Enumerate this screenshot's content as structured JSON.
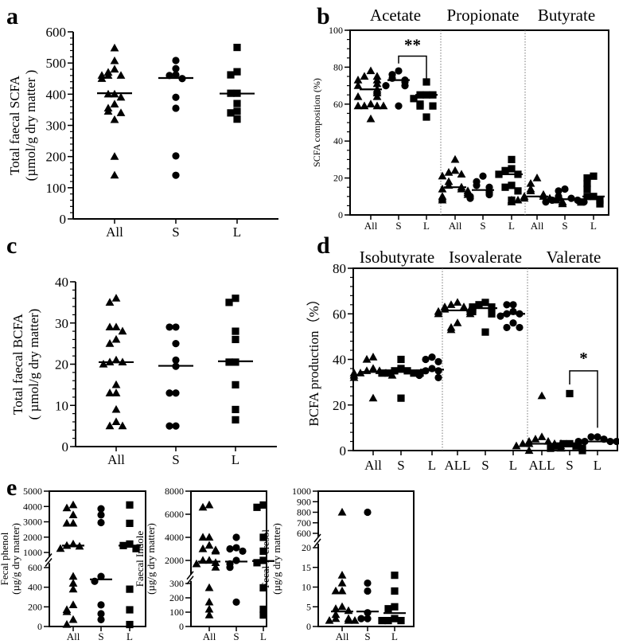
{
  "panel_labels": [
    "a",
    "b",
    "c",
    "d",
    "e"
  ],
  "chart_data": [
    {
      "id": "a",
      "type": "scatter",
      "ylabel": [
        "Total faecal SCFA",
        "(µmol/g dry matter )"
      ],
      "ylim": [
        0,
        600
      ],
      "yticks": [
        0,
        100,
        200,
        300,
        400,
        500,
        600
      ],
      "markers": [
        "triangle",
        "circle",
        "square"
      ],
      "groups": [
        {
          "title": "",
          "categories": [
            "All",
            "S",
            "L"
          ],
          "values": [
            [
              548,
              507,
              480,
              470,
              460,
              460,
              460,
              450,
              400,
              400,
              390,
              368,
              355,
              345,
              340,
              318,
              200,
              140
            ],
            [
              508,
              482,
              462,
              460,
              450,
              390,
              355,
              202,
              140
            ],
            [
              550,
              472,
              462,
              403,
              403,
              370,
              345,
              340,
              320
            ]
          ],
          "medians": [
            403,
            452,
            402
          ]
        }
      ]
    },
    {
      "id": "b",
      "type": "scatter",
      "ylabel": [
        "SCFA composition (%)"
      ],
      "ylim": [
        0,
        100
      ],
      "yticks": [
        0,
        20,
        40,
        60,
        80,
        100
      ],
      "markers": [
        "triangle",
        "circle",
        "square"
      ],
      "groups": [
        {
          "title": "Acetate",
          "categories": [
            "All",
            "S",
            "L"
          ],
          "values": [
            [
              78,
              75,
              75,
              73,
              73,
              71,
              70,
              68,
              67,
              66,
              64,
              64,
              60,
              59,
              59,
              59,
              59,
              52
            ],
            [
              78,
              76,
              74,
              73,
              72,
              70,
              70,
              59
            ],
            [
              72,
              65,
              65,
              65,
              63,
              60,
              59,
              59,
              53
            ]
          ],
          "medians": [
            68,
            73,
            65
          ]
        },
        {
          "title": "Propionate",
          "categories": [
            "All",
            "S",
            "L"
          ],
          "values": [
            [
              30,
              24,
              23,
              22,
              21,
              18,
              16,
              15,
              14,
              14,
              13,
              12,
              11,
              10,
              9,
              8
            ],
            [
              21,
              18,
              16,
              15,
              13,
              12,
              11,
              10,
              9
            ],
            [
              30,
              25,
              24,
              22,
              22,
              16,
              15,
              13,
              8
            ]
          ],
          "medians": [
            15,
            13.5,
            22
          ]
        },
        {
          "title": "Butyrate",
          "categories": [
            "All",
            "S",
            "L"
          ],
          "values": [
            [
              20,
              17,
              14,
              13,
              11,
              10,
              10,
              9,
              9,
              8,
              8,
              8,
              7,
              7,
              7,
              6,
              6
            ],
            [
              14,
              13,
              10,
              9,
              9,
              8,
              8,
              7,
              7
            ],
            [
              21,
              20,
              17,
              14,
              10,
              10,
              8,
              7,
              6
            ]
          ],
          "medians": [
            10,
            8.5,
            10
          ]
        }
      ],
      "annotations": [
        {
          "text": "**",
          "between": [
            "S",
            "L"
          ],
          "group": "Acetate"
        }
      ]
    },
    {
      "id": "c",
      "type": "scatter",
      "ylabel": [
        "Total faecal BCFA",
        "( µmol/g dry matter)"
      ],
      "ylim": [
        0,
        40
      ],
      "yticks": [
        0,
        10,
        20,
        30,
        40
      ],
      "markers": [
        "triangle",
        "circle",
        "square"
      ],
      "groups": [
        {
          "title": "",
          "categories": [
            "All",
            "S",
            "L"
          ],
          "values": [
            [
              36,
              35,
              29,
              29,
              28,
              26,
              25,
              21,
              20.5,
              20.5,
              20,
              15,
              13,
              13,
              9,
              6,
              5,
              5
            ],
            [
              29,
              29,
              25,
              21,
              19.5,
              13,
              13,
              5,
              5
            ],
            [
              36,
              35,
              28,
              26,
              20.5,
              20.5,
              15,
              9,
              6.5
            ]
          ],
          "medians": [
            20.5,
            19.6,
            20.7
          ]
        }
      ]
    },
    {
      "id": "d",
      "type": "scatter",
      "ylabel": [
        "BCFA production（%）"
      ],
      "ylim": [
        0,
        80
      ],
      "yticks": [
        0,
        20,
        40,
        60,
        80
      ],
      "markers": [
        "triangle",
        "square",
        "circle"
      ],
      "groups": [
        {
          "title": "Isobutyrate",
          "categories": [
            "All",
            "S",
            "L"
          ],
          "values": [
            [
              41,
              40,
              36,
              35,
              35,
              34,
              34,
              34,
              33,
              33,
              32,
              23
            ],
            [
              40,
              36,
              35,
              35,
              34,
              34,
              34,
              34,
              23
            ],
            [
              41,
              40,
              39,
              36,
              35,
              35,
              34,
              33,
              32
            ]
          ],
          "medians": [
            34.5,
            34.5,
            35.5
          ]
        },
        {
          "title": "Isovalerate",
          "categories": [
            "ALL",
            "S",
            "L"
          ],
          "values": [
            [
              65,
              64,
              63,
              63,
              62,
              62,
              61,
              61,
              60,
              60,
              56,
              54,
              53
            ],
            [
              65,
              64,
              63,
              63,
              62,
              61,
              60,
              52
            ],
            [
              64,
              64,
              61,
              60,
              60,
              59,
              56,
              54,
              54
            ]
          ],
          "medians": [
            61.5,
            62.5,
            60
          ]
        },
        {
          "title": "Valerate",
          "categories": [
            "ALL",
            "S",
            "L"
          ],
          "values": [
            [
              24,
              6,
              5,
              4,
              4,
              3,
              3,
              3,
              3,
              2,
              2,
              1,
              0
            ],
            [
              25,
              3,
              3,
              2,
              2,
              1,
              1,
              0
            ],
            [
              6,
              6,
              5,
              4,
              4,
              4,
              4,
              3,
              2
            ]
          ],
          "medians": [
            3,
            2,
            4
          ]
        }
      ],
      "annotations": [
        {
          "text": "*",
          "between": [
            "S",
            "L"
          ],
          "group": "Valerate"
        }
      ]
    },
    {
      "id": "e1",
      "type": "scatter",
      "ylabel": [
        "Fecal phenol",
        "(µg/g dry matter)"
      ],
      "ylim": [
        0,
        5000
      ],
      "axis_break": [
        600,
        1000
      ],
      "yticks": [
        0,
        200,
        400,
        600,
        1000,
        2000,
        3000,
        4000,
        5000
      ],
      "markers": [
        "triangle",
        "circle",
        "square"
      ],
      "groups": [
        {
          "title": "",
          "categories": [
            "All",
            "S",
            "L"
          ],
          "values": [
            [
              4100,
              3900,
              3450,
              2900,
              2900,
              1550,
              1450,
              1400,
              1250,
              510,
              440,
              380,
              220,
              170,
              150,
              70,
              20
            ],
            [
              3850,
              3450,
              2950,
              510,
              460,
              220,
              130,
              70
            ],
            [
              4100,
              2900,
              1550,
              1450,
              1250,
              380,
              170,
              20
            ]
          ],
          "medians": [
            1450,
            480,
            1450
          ]
        }
      ]
    },
    {
      "id": "e2",
      "type": "scatter",
      "ylabel": [
        "Faecal Indole",
        "(µg/g dry matter)"
      ],
      "ylim": [
        0,
        8000
      ],
      "axis_break": [
        300,
        1000
      ],
      "yticks": [
        0,
        100,
        200,
        300,
        2000,
        4000,
        6000,
        8000
      ],
      "markers": [
        "triangle",
        "circle",
        "square"
      ],
      "groups": [
        {
          "title": "",
          "categories": [
            "All",
            "S",
            "L"
          ],
          "values": [
            [
              6800,
              6600,
              4000,
              4000,
              3300,
              3000,
              2900,
              2800,
              2000,
              2000,
              1800,
              1700,
              1400,
              270,
              170,
              120,
              80
            ],
            [
              4000,
              3100,
              3000,
              2800,
              2000,
              1700,
              1400,
              170
            ],
            [
              6800,
              6600,
              4000,
              2800,
              2000,
              1800,
              270,
              120,
              80
            ]
          ],
          "medians": [
            1900,
            1900,
            1950
          ]
        }
      ]
    },
    {
      "id": "e3",
      "type": "scatter",
      "ylabel": [
        "Fecal P-cresol",
        "(µg/g dry matter)"
      ],
      "ylim": [
        0,
        1000
      ],
      "axis_break": [
        20,
        600
      ],
      "yticks": [
        0,
        5,
        10,
        15,
        20,
        600,
        700,
        800,
        900,
        1000
      ],
      "markers": [
        "triangle",
        "circle",
        "square"
      ],
      "groups": [
        {
          "title": "",
          "categories": [
            "All",
            "S",
            "L"
          ],
          "values": [
            [
              800,
              13,
              11,
              9,
              9,
              5,
              4.5,
              4,
              3,
              2,
              2,
              1.5,
              1.5,
              1.5
            ],
            [
              800,
              11,
              9,
              3.5,
              2,
              2
            ],
            [
              13,
              9,
              5,
              4.5,
              2,
              1.5,
              1.5,
              1.5
            ]
          ],
          "medians": [
            3.8,
            3.8,
            3.4
          ]
        }
      ]
    }
  ]
}
